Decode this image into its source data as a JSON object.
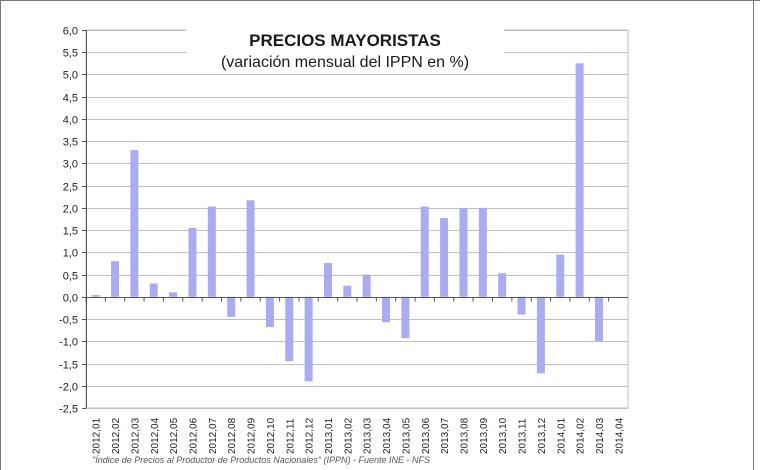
{
  "chart_data": {
    "type": "bar",
    "title": "PRECIOS MAYORISTAS",
    "subtitle": "(variación mensual del IPPN en %)",
    "footnote": "\"Índice de Precios al Productor de Productos Nacionales\" (IPPN) - Fuente INE - NFS",
    "categories": [
      "2012,01",
      "2012,02",
      "2012,03",
      "2012,04",
      "2012,05",
      "2012,06",
      "2012,07",
      "2012,08",
      "2012,09",
      "2012,10",
      "2012,11",
      "2012,12",
      "2013,01",
      "2013,02",
      "2013,03",
      "2013,04",
      "2013,05",
      "2013,06",
      "2013,07",
      "2013,08",
      "2013,09",
      "2013,10",
      "2013,11",
      "2013,12",
      "2014,01",
      "2014,02",
      "2014,03",
      "2014,04"
    ],
    "values": [
      0.04,
      0.8,
      3.3,
      0.3,
      0.1,
      1.55,
      2.03,
      -0.45,
      2.17,
      -0.68,
      -1.45,
      -1.9,
      0.76,
      0.25,
      0.5,
      -0.57,
      -0.93,
      2.03,
      1.77,
      2.0,
      2.0,
      0.53,
      -0.4,
      -1.72,
      0.95,
      5.25,
      -1.0,
      null
    ],
    "ylim": [
      -2.5,
      6.0
    ],
    "ytick_step": 0.5,
    "ytick_labels": [
      "-2,5",
      "-2,0",
      "-1,5",
      "-1,0",
      "-0,5",
      "0,0",
      "0,5",
      "1,0",
      "1,5",
      "2,0",
      "2,5",
      "3,0",
      "3,5",
      "4,0",
      "4,5",
      "5,0",
      "5,5",
      "6,0"
    ],
    "grid": true,
    "colors": {
      "bar": "#a9acf3",
      "grid": "#bfbfbf",
      "axis": "#555555",
      "text": "#222222"
    }
  }
}
